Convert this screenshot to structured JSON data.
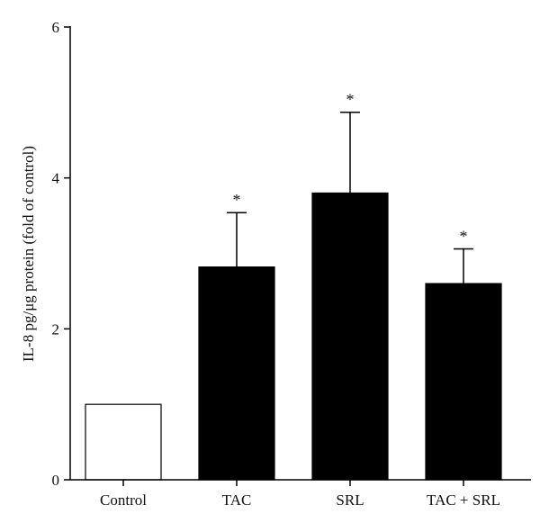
{
  "chart_data": {
    "type": "bar",
    "title": "",
    "xlabel": "",
    "ylabel": "IL-8 pg/μg protein (fold of control)",
    "ylim": [
      0,
      6
    ],
    "yticks": [
      0,
      2,
      4,
      6
    ],
    "grid": false,
    "categories": [
      "Control",
      "TAC",
      "SRL",
      "TAC + SRL"
    ],
    "values": [
      1.0,
      2.82,
      3.8,
      2.6
    ],
    "error_upper": [
      0.0,
      0.72,
      1.07,
      0.46
    ],
    "annotations": [
      "",
      "*",
      "*",
      "*"
    ],
    "colors": {
      "Control": "#ffffff",
      "treated": "#000000",
      "axis": "#000000"
    }
  }
}
